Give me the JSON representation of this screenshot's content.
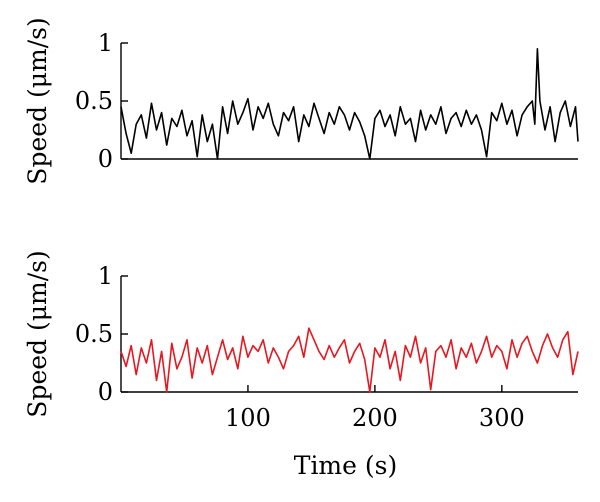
{
  "chart_data": [
    {
      "type": "line",
      "ylabel": "Speed (μm/s)",
      "xlabel": "",
      "xlim": [
        0,
        360
      ],
      "ylim": [
        0,
        1
      ],
      "yticks": [
        0,
        0.5,
        1
      ],
      "ytick_labels": [
        "0",
        "0.5",
        "1"
      ],
      "xticks": [],
      "color": "#000000",
      "series": [
        {
          "x": [
            0,
            4,
            8,
            12,
            16,
            20,
            24,
            28,
            32,
            36,
            40,
            44,
            48,
            52,
            56,
            60,
            64,
            68,
            72,
            76,
            80,
            84,
            88,
            92,
            96,
            100,
            104,
            108,
            112,
            116,
            120,
            124,
            128,
            132,
            136,
            140,
            144,
            148,
            152,
            156,
            160,
            164,
            168,
            172,
            176,
            180,
            184,
            188,
            192,
            196,
            200,
            204,
            208,
            212,
            216,
            220,
            224,
            228,
            232,
            236,
            240,
            244,
            248,
            252,
            256,
            260,
            264,
            268,
            272,
            276,
            280,
            284,
            288,
            292,
            296,
            300,
            304,
            308,
            312,
            316,
            320,
            324,
            326,
            328,
            330,
            334,
            338,
            342,
            346,
            350,
            354,
            358,
            360
          ],
          "values": [
            0.45,
            0.22,
            0.05,
            0.3,
            0.38,
            0.18,
            0.48,
            0.25,
            0.4,
            0.12,
            0.35,
            0.28,
            0.42,
            0.2,
            0.33,
            0.02,
            0.38,
            0.15,
            0.3,
            0.0,
            0.45,
            0.22,
            0.5,
            0.3,
            0.4,
            0.52,
            0.25,
            0.45,
            0.35,
            0.48,
            0.3,
            0.2,
            0.4,
            0.33,
            0.45,
            0.15,
            0.38,
            0.28,
            0.48,
            0.35,
            0.22,
            0.4,
            0.3,
            0.45,
            0.38,
            0.25,
            0.4,
            0.32,
            0.2,
            0.0,
            0.35,
            0.42,
            0.28,
            0.38,
            0.2,
            0.45,
            0.3,
            0.35,
            0.15,
            0.42,
            0.25,
            0.38,
            0.3,
            0.45,
            0.22,
            0.35,
            0.4,
            0.28,
            0.42,
            0.3,
            0.38,
            0.25,
            0.02,
            0.4,
            0.33,
            0.48,
            0.3,
            0.42,
            0.2,
            0.38,
            0.45,
            0.5,
            0.3,
            0.95,
            0.5,
            0.25,
            0.45,
            0.15,
            0.4,
            0.5,
            0.28,
            0.45,
            0.15
          ]
        }
      ]
    },
    {
      "type": "line",
      "ylabel": "Speed (μm/s)",
      "xlabel": "Time (s)",
      "xlim": [
        0,
        360
      ],
      "ylim": [
        0,
        1
      ],
      "yticks": [
        0,
        0.5,
        1
      ],
      "ytick_labels": [
        "0",
        "0.5",
        "1"
      ],
      "xticks": [
        100,
        200,
        300
      ],
      "xtick_labels": [
        "100",
        "200",
        "300"
      ],
      "color": "#e8171f",
      "series": [
        {
          "x": [
            0,
            4,
            8,
            12,
            16,
            20,
            24,
            28,
            32,
            36,
            40,
            44,
            48,
            52,
            56,
            60,
            64,
            68,
            72,
            76,
            80,
            84,
            88,
            92,
            96,
            100,
            104,
            108,
            112,
            116,
            120,
            124,
            128,
            132,
            136,
            140,
            144,
            148,
            152,
            156,
            160,
            164,
            168,
            172,
            176,
            180,
            184,
            188,
            192,
            196,
            200,
            204,
            208,
            212,
            216,
            220,
            224,
            228,
            232,
            236,
            240,
            244,
            248,
            252,
            256,
            260,
            264,
            268,
            272,
            276,
            280,
            284,
            288,
            292,
            296,
            300,
            304,
            308,
            312,
            316,
            320,
            324,
            328,
            332,
            336,
            340,
            344,
            348,
            352,
            356,
            360
          ],
          "values": [
            0.35,
            0.22,
            0.4,
            0.15,
            0.38,
            0.25,
            0.45,
            0.1,
            0.35,
            0.0,
            0.42,
            0.2,
            0.3,
            0.45,
            0.12,
            0.38,
            0.25,
            0.4,
            0.15,
            0.3,
            0.45,
            0.28,
            0.38,
            0.2,
            0.48,
            0.3,
            0.4,
            0.35,
            0.45,
            0.25,
            0.38,
            0.3,
            0.2,
            0.35,
            0.4,
            0.48,
            0.3,
            0.55,
            0.45,
            0.35,
            0.28,
            0.4,
            0.3,
            0.38,
            0.45,
            0.25,
            0.35,
            0.42,
            0.28,
            0.0,
            0.38,
            0.3,
            0.45,
            0.2,
            0.35,
            0.1,
            0.4,
            0.3,
            0.48,
            0.25,
            0.38,
            0.02,
            0.35,
            0.4,
            0.3,
            0.45,
            0.2,
            0.38,
            0.3,
            0.42,
            0.25,
            0.35,
            0.48,
            0.3,
            0.4,
            0.35,
            0.2,
            0.45,
            0.3,
            0.42,
            0.48,
            0.35,
            0.25,
            0.4,
            0.5,
            0.38,
            0.3,
            0.45,
            0.52,
            0.15,
            0.35
          ]
        }
      ]
    }
  ]
}
